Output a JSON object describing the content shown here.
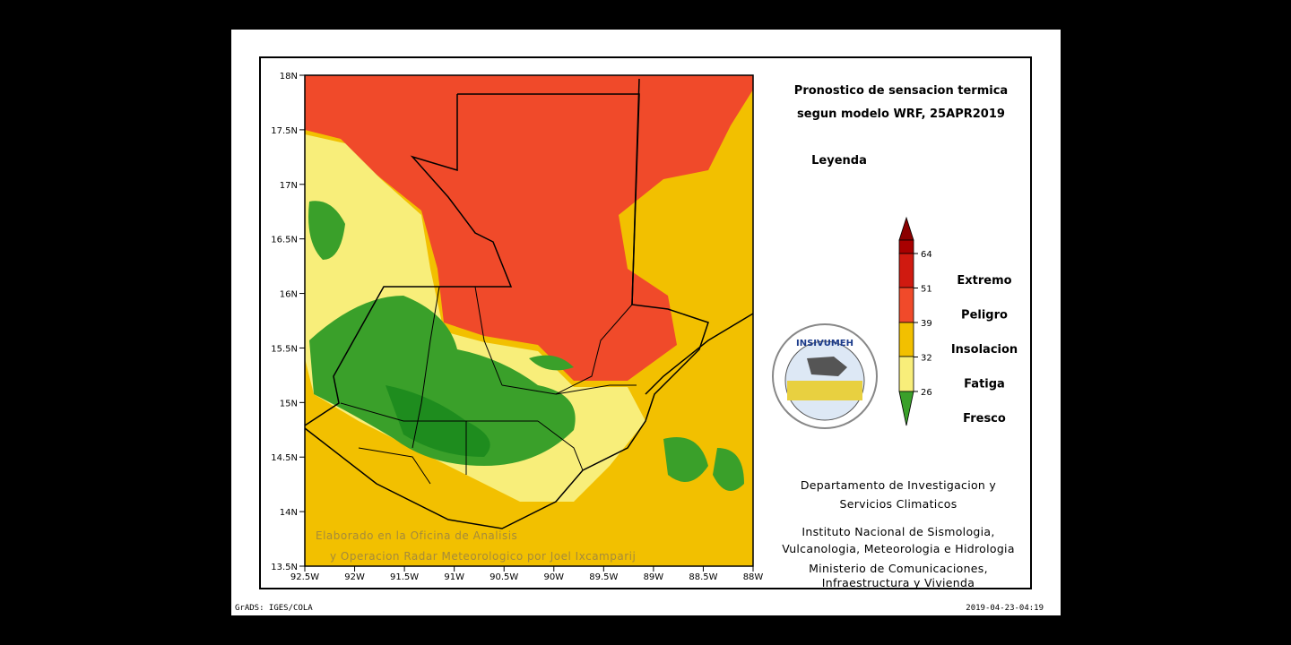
{
  "header": {
    "title_line1": "Pronostico de sensacion termica",
    "title_line2": "segun modelo WRF, 25APR2019",
    "legend_title": "Leyenda"
  },
  "map": {
    "lat_labels": [
      "18N",
      "17.5N",
      "17N",
      "16.5N",
      "16N",
      "15.5N",
      "15N",
      "14.5N",
      "14N",
      "13.5N"
    ],
    "lon_labels": [
      "92.5W",
      "92W",
      "91.5W",
      "91W",
      "90.5W",
      "90W",
      "89.5W",
      "89W",
      "88.5W",
      "88W"
    ],
    "credit_line1": "Elaborado en la Oficina de Analisis",
    "credit_line2": "y Operacion Radar Meteorologico por Joel Ixcamparij"
  },
  "legend": {
    "ticks": [
      "64",
      "51",
      "39",
      "32",
      "26"
    ],
    "classes": [
      "Extremo",
      "Peligro",
      "Insolacion",
      "Fatiga",
      "Fresco"
    ]
  },
  "logo": {
    "text": "INSIVUMEH"
  },
  "institutions": [
    "Departamento de Investigacion y",
    "Servicios Climaticos",
    "Instituto Nacional de Sismologia,",
    "Vulcanologia, Meteorologia e Hidrologia",
    "Ministerio de Comunicaciones,",
    "Infraestructura y Vivienda"
  ],
  "footer": {
    "left": "GrADS: IGES/COLA",
    "right": "2019-04-23-04:19"
  }
}
